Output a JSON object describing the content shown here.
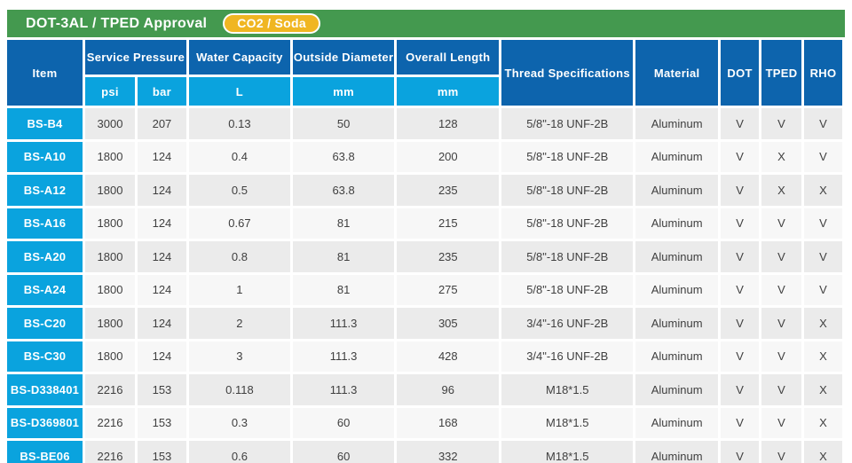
{
  "title_bar": {
    "title": "DOT-3AL / TPED Approval",
    "badge": "CO2 / Soda"
  },
  "colors": {
    "green": "#44994f",
    "yellow": "#f0b622",
    "blue": "#0d64ad",
    "cyan": "#0aa3de"
  },
  "table": {
    "header_groups": [
      {
        "label": "Item"
      },
      {
        "label": "Service Pressure"
      },
      {
        "label": "Water Capacity"
      },
      {
        "label": "Outside Diameter"
      },
      {
        "label": "Overall Length"
      },
      {
        "label": "Thread Specifications"
      },
      {
        "label": "Material"
      },
      {
        "label": "DOT"
      },
      {
        "label": "TPED"
      },
      {
        "label": "RHO"
      }
    ],
    "sub_headers": [
      "psi",
      "bar",
      "L",
      "mm",
      "mm"
    ],
    "row_keys": [
      "item",
      "psi",
      "bar",
      "capacity_l",
      "outside_diameter_mm",
      "overall_length_mm",
      "thread",
      "material",
      "dot",
      "tped",
      "rho"
    ],
    "rows": [
      {
        "item": "BS-B4",
        "psi": "3000",
        "bar": "207",
        "capacity_l": "0.13",
        "outside_diameter_mm": "50",
        "overall_length_mm": "128",
        "thread": "5/8\"-18 UNF-2B",
        "material": "Aluminum",
        "dot": "V",
        "tped": "V",
        "rho": "V"
      },
      {
        "item": "BS-A10",
        "psi": "1800",
        "bar": "124",
        "capacity_l": "0.4",
        "outside_diameter_mm": "63.8",
        "overall_length_mm": "200",
        "thread": "5/8\"-18 UNF-2B",
        "material": "Aluminum",
        "dot": "V",
        "tped": "X",
        "rho": "V"
      },
      {
        "item": "BS-A12",
        "psi": "1800",
        "bar": "124",
        "capacity_l": "0.5",
        "outside_diameter_mm": "63.8",
        "overall_length_mm": "235",
        "thread": "5/8\"-18 UNF-2B",
        "material": "Aluminum",
        "dot": "V",
        "tped": "X",
        "rho": "X"
      },
      {
        "item": "BS-A16",
        "psi": "1800",
        "bar": "124",
        "capacity_l": "0.67",
        "outside_diameter_mm": "81",
        "overall_length_mm": "215",
        "thread": "5/8\"-18 UNF-2B",
        "material": "Aluminum",
        "dot": "V",
        "tped": "V",
        "rho": "V"
      },
      {
        "item": "BS-A20",
        "psi": "1800",
        "bar": "124",
        "capacity_l": "0.8",
        "outside_diameter_mm": "81",
        "overall_length_mm": "235",
        "thread": "5/8\"-18 UNF-2B",
        "material": "Aluminum",
        "dot": "V",
        "tped": "V",
        "rho": "V"
      },
      {
        "item": "BS-A24",
        "psi": "1800",
        "bar": "124",
        "capacity_l": "1",
        "outside_diameter_mm": "81",
        "overall_length_mm": "275",
        "thread": "5/8\"-18 UNF-2B",
        "material": "Aluminum",
        "dot": "V",
        "tped": "V",
        "rho": "V"
      },
      {
        "item": "BS-C20",
        "psi": "1800",
        "bar": "124",
        "capacity_l": "2",
        "outside_diameter_mm": "111.3",
        "overall_length_mm": "305",
        "thread": "3/4\"-16 UNF-2B",
        "material": "Aluminum",
        "dot": "V",
        "tped": "V",
        "rho": "X"
      },
      {
        "item": "BS-C30",
        "psi": "1800",
        "bar": "124",
        "capacity_l": "3",
        "outside_diameter_mm": "111.3",
        "overall_length_mm": "428",
        "thread": "3/4\"-16 UNF-2B",
        "material": "Aluminum",
        "dot": "V",
        "tped": "V",
        "rho": "X"
      },
      {
        "item": "BS-D338401",
        "psi": "2216",
        "bar": "153",
        "capacity_l": "0.118",
        "outside_diameter_mm": "111.3",
        "overall_length_mm": "96",
        "thread": "M18*1.5",
        "material": "Aluminum",
        "dot": "V",
        "tped": "V",
        "rho": "X"
      },
      {
        "item": "BS-D369801",
        "psi": "2216",
        "bar": "153",
        "capacity_l": "0.3",
        "outside_diameter_mm": "60",
        "overall_length_mm": "168",
        "thread": "M18*1.5",
        "material": "Aluminum",
        "dot": "V",
        "tped": "V",
        "rho": "X"
      },
      {
        "item": "BS-BE06",
        "psi": "2216",
        "bar": "153",
        "capacity_l": "0.6",
        "outside_diameter_mm": "60",
        "overall_length_mm": "332",
        "thread": "M18*1.5",
        "material": "Aluminum",
        "dot": "V",
        "tped": "V",
        "rho": "X"
      }
    ]
  }
}
